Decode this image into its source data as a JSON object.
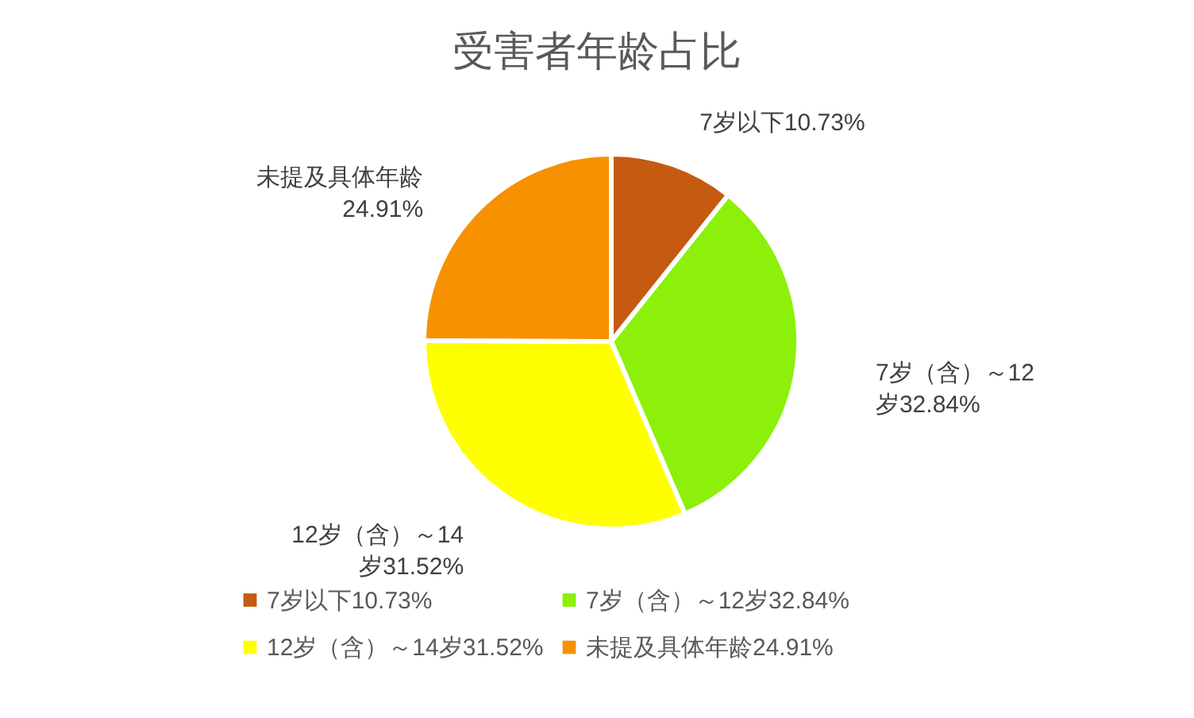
{
  "chart_data": {
    "type": "pie",
    "title": "受害者年龄占比",
    "categories": [
      "7岁以下",
      "7岁（含）～12岁",
      "12岁（含）～14岁",
      "未提及具体年龄"
    ],
    "values": [
      10.73,
      32.84,
      31.52,
      24.91
    ],
    "value_labels": [
      "10.73%",
      "32.84%",
      "31.52%",
      "24.91%"
    ],
    "colors": [
      "#c55a11",
      "#8cf00a",
      "#ffff00",
      "#f79100"
    ],
    "legend": "bottom"
  }
}
